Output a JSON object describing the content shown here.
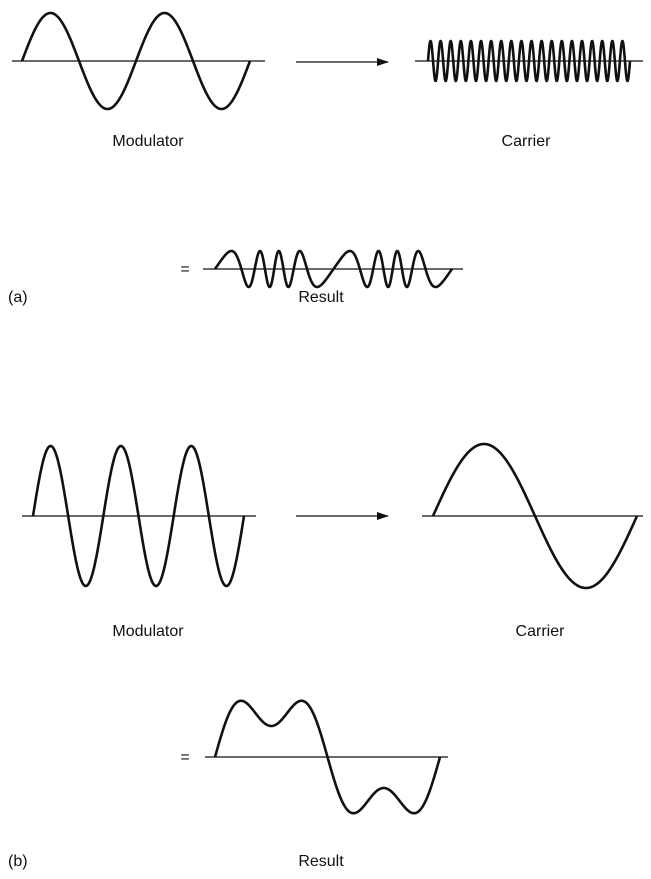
{
  "panels": [
    {
      "label": "(a)",
      "modulator": "Modulator",
      "carrier": "Carrier",
      "equals": "=",
      "result": "Result"
    },
    {
      "label": "(b)",
      "modulator": "Modulator",
      "carrier": "Carrier",
      "equals": "=",
      "result": "Result"
    }
  ]
}
